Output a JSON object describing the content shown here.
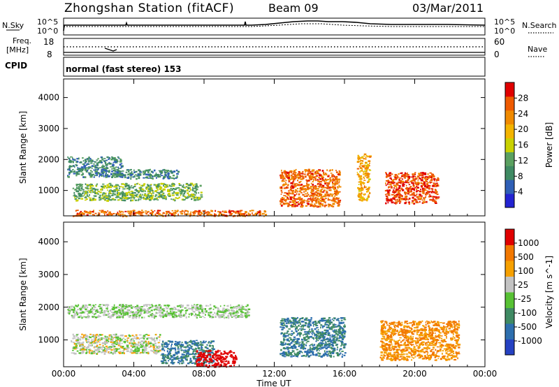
{
  "header": {
    "station": "Zhongshan Station (fitACF)",
    "beam": "Beam 09",
    "date": "03/Mar/2011"
  },
  "noise_panel": {
    "left_label": "N.Sky",
    "right_label": "N.Search",
    "y_ticks": [
      "10^5",
      "10^0"
    ],
    "y_range": [
      0,
      5
    ]
  },
  "freq_panel": {
    "left_label_line1": "Freq.",
    "left_label_line2": "[MHz]",
    "right_label": "Nave",
    "left_ticks": [
      "18",
      "8"
    ],
    "left_range": [
      8,
      18
    ],
    "right_ticks": [
      "60",
      "0"
    ],
    "right_range": [
      0,
      60
    ]
  },
  "cpid": {
    "label": "CPID",
    "mode": "normal (fast stereo) 153"
  },
  "x_axis": {
    "label": "Time UT",
    "ticks": [
      "00:00",
      "04:00",
      "08:00",
      "12:00",
      "16:00",
      "20:00",
      "00:00"
    ],
    "range_hours": [
      0,
      24
    ]
  },
  "colors": {
    "power": [
      "#2323d2",
      "#2f5fb6",
      "#3f8a63",
      "#5aa060",
      "#c9d100",
      "#f3b400",
      "#f08a00",
      "#ee5a00",
      "#e00000"
    ],
    "velocity": [
      "#2541c2",
      "#2e6fae",
      "#3f8a63",
      "#57c134",
      "#c3c3c3",
      "#f6a000",
      "#f27800",
      "#e00000"
    ]
  },
  "chart_data": [
    {
      "type": "heatmap",
      "title": "",
      "xlabel": "",
      "ylabel": "Slant Range [km]",
      "y_ticks": [
        "4000",
        "3000",
        "2000",
        "1000"
      ],
      "ylim": [
        180,
        4600
      ],
      "colorbar": {
        "label": "Power [dB]",
        "ticks": [
          "28",
          "24",
          "20",
          "16",
          "12",
          "8",
          "4"
        ],
        "range": [
          0,
          30
        ]
      },
      "approx_regions": [
        {
          "t_start": 0.2,
          "t_end": 3.3,
          "range_start": 1450,
          "range_end": 2100,
          "value": 8
        },
        {
          "t_start": 3.3,
          "t_end": 6.5,
          "range_start": 1400,
          "range_end": 1700,
          "value": 8
        },
        {
          "t_start": 0.5,
          "t_end": 7.8,
          "range_start": 700,
          "range_end": 1250,
          "value": 12
        },
        {
          "t_start": 0.5,
          "t_end": 11.5,
          "range_start": 190,
          "range_end": 380,
          "value": 24
        },
        {
          "t_start": 12.3,
          "t_end": 15.7,
          "range_start": 500,
          "range_end": 1700,
          "value": 24
        },
        {
          "t_start": 16.7,
          "t_end": 17.4,
          "range_start": 700,
          "range_end": 2200,
          "value": 20
        },
        {
          "t_start": 18.3,
          "t_end": 21.3,
          "range_start": 600,
          "range_end": 1600,
          "value": 26
        }
      ]
    },
    {
      "type": "heatmap",
      "title": "",
      "xlabel": "Time UT",
      "ylabel": "Slant Range [km]",
      "y_ticks": [
        "4000",
        "3000",
        "2000",
        "1000"
      ],
      "ylim": [
        180,
        4600
      ],
      "colorbar": {
        "label": "Velocity [m s^-1]",
        "ticks": [
          "1000",
          "500",
          "100",
          "25",
          "-25",
          "-100",
          "-500",
          "-1000"
        ],
        "range": [
          -1000,
          1000
        ]
      },
      "approx_regions": [
        {
          "t_start": 0.2,
          "t_end": 10.5,
          "range_start": 1700,
          "range_end": 2100,
          "value": 0
        },
        {
          "t_start": 0.4,
          "t_end": 5.5,
          "range_start": 600,
          "range_end": 1200,
          "value": 100
        },
        {
          "t_start": 5.5,
          "t_end": 8.5,
          "range_start": 300,
          "range_end": 1000,
          "value": -500
        },
        {
          "t_start": 7.5,
          "t_end": 9.8,
          "range_start": 190,
          "range_end": 700,
          "value": 1000
        },
        {
          "t_start": 12.3,
          "t_end": 16.0,
          "range_start": 500,
          "range_end": 1700,
          "value": -500
        },
        {
          "t_start": 18.0,
          "t_end": 22.5,
          "range_start": 400,
          "range_end": 1600,
          "value": 500
        }
      ]
    }
  ]
}
